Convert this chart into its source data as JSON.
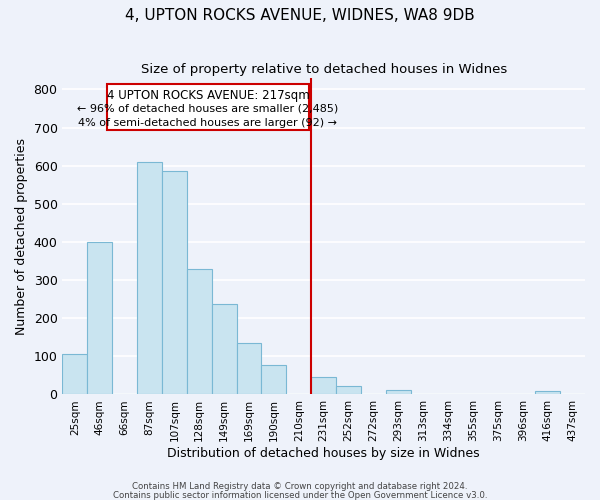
{
  "title": "4, UPTON ROCKS AVENUE, WIDNES, WA8 9DB",
  "subtitle": "Size of property relative to detached houses in Widnes",
  "xlabel": "Distribution of detached houses by size in Widnes",
  "ylabel": "Number of detached properties",
  "bar_labels": [
    "25sqm",
    "46sqm",
    "66sqm",
    "87sqm",
    "107sqm",
    "128sqm",
    "149sqm",
    "169sqm",
    "190sqm",
    "210sqm",
    "231sqm",
    "252sqm",
    "272sqm",
    "293sqm",
    "313sqm",
    "334sqm",
    "355sqm",
    "375sqm",
    "396sqm",
    "416sqm",
    "437sqm"
  ],
  "bar_heights": [
    105,
    400,
    0,
    610,
    585,
    328,
    237,
    135,
    77,
    0,
    47,
    22,
    0,
    13,
    0,
    0,
    0,
    0,
    0,
    8,
    0
  ],
  "bar_color": "#c9e4f0",
  "bar_edge_color": "#7ab8d4",
  "vline_x": 9.5,
  "vline_color": "#cc0000",
  "annotation_title": "4 UPTON ROCKS AVENUE: 217sqm",
  "annotation_line1": "← 96% of detached houses are smaller (2,485)",
  "annotation_line2": "4% of semi-detached houses are larger (92) →",
  "annotation_box_color": "white",
  "annotation_box_edge_color": "#cc0000",
  "ylim": [
    0,
    830
  ],
  "footer1": "Contains HM Land Registry data © Crown copyright and database right 2024.",
  "footer2": "Contains public sector information licensed under the Open Government Licence v3.0.",
  "bg_color": "#eef2fa",
  "grid_color": "#ffffff",
  "title_fontsize": 11,
  "subtitle_fontsize": 9.5
}
